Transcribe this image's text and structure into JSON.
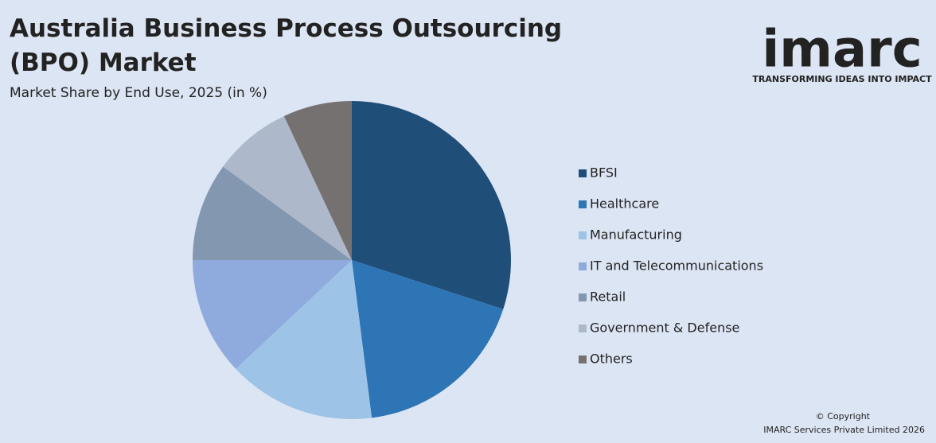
{
  "chart_data": {
    "type": "pie",
    "title": "Australia Business Process Outsourcing (BPO) Market",
    "subtitle": "Market Share by End Use, 2025 (in %)",
    "categories": [
      "BFSI",
      "Healthcare",
      "Manufacturing",
      "IT and Telecommunications",
      "Retail",
      "Government & Defense",
      "Others"
    ],
    "values": [
      30,
      18,
      15,
      12,
      10,
      8,
      7
    ],
    "colors": [
      "#1f4e79",
      "#2e75b6",
      "#9dc3e6",
      "#8faadc",
      "#8497b0",
      "#adb9ca",
      "#767171"
    ],
    "legend": "right"
  },
  "logo": {
    "text": "imarc",
    "tagline": "TRANSFORMING IDEAS INTO IMPACT"
  },
  "footer": {
    "copyright": "© Copyright",
    "owner": "IMARC Services Private Limited 2026"
  }
}
